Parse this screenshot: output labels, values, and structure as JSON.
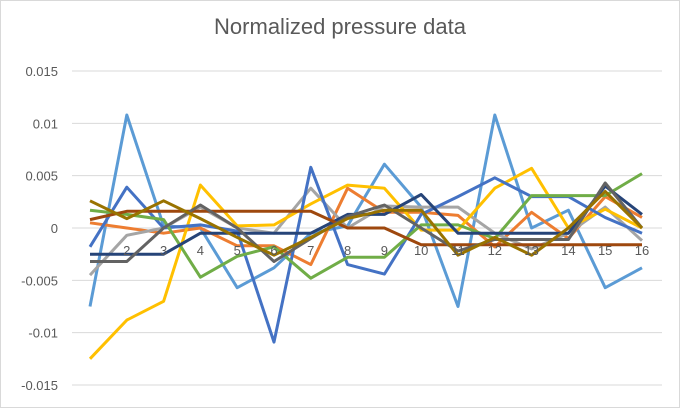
{
  "chart_data": {
    "type": "line",
    "title": "Normalized pressure data",
    "xlabel": "",
    "ylabel": "",
    "x": [
      1,
      2,
      3,
      4,
      5,
      6,
      7,
      8,
      9,
      10,
      11,
      12,
      13,
      14,
      15,
      16
    ],
    "x_tick_labels": [
      "2",
      "3",
      "4",
      "5",
      "6",
      "7",
      "8",
      "9",
      "10",
      "11",
      "12",
      "13",
      "14",
      "15",
      "16"
    ],
    "y_tick_labels": [
      "0.015",
      "0.01",
      "0.005",
      "0",
      "-0.005",
      "-0.01",
      "-0.015"
    ],
    "ylim": [
      -0.015,
      0.015
    ],
    "grid": true,
    "legend": "none",
    "series": [
      {
        "color": "#5b9bd5",
        "values": [
          -0.0075,
          0.0108,
          0.0002,
          0.0,
          -0.0057,
          -0.0038,
          -0.0005,
          0.0002,
          0.0061,
          0.002,
          -0.0075,
          0.0108,
          0.0,
          0.0017,
          -0.0057,
          -0.0038
        ]
      },
      {
        "color": "#ed7d31",
        "values": [
          0.0005,
          0.0,
          -0.0005,
          0.0,
          -0.0017,
          -0.0017,
          -0.0035,
          0.0038,
          0.0015,
          0.0015,
          0.0012,
          -0.0018,
          0.0015,
          -0.001,
          0.003,
          0.001
        ]
      },
      {
        "color": "#a5a5a5",
        "values": [
          -0.0045,
          -0.0007,
          0.0,
          0.002,
          0.0,
          -0.0005,
          0.0038,
          0.0,
          0.0021,
          0.002,
          0.002,
          -0.0005,
          -0.002,
          -0.0005,
          0.002,
          -0.0012
        ]
      },
      {
        "color": "#ffc000",
        "values": [
          -0.0125,
          -0.0088,
          -0.007,
          0.0041,
          0.0002,
          0.0003,
          0.0023,
          0.0041,
          0.0038,
          -0.0002,
          -0.0002,
          0.0038,
          0.0057,
          0.0,
          0.0018,
          0.0
        ]
      },
      {
        "color": "#4472c4",
        "values": [
          -0.0018,
          0.0039,
          0.0,
          0.0003,
          -0.0003,
          -0.0109,
          0.0058,
          -0.0035,
          -0.0044,
          0.0013,
          0.003,
          0.0048,
          0.003,
          0.003,
          0.001,
          -0.0005
        ]
      },
      {
        "color": "#70ad47",
        "values": [
          0.0017,
          0.0013,
          0.0008,
          -0.0047,
          -0.0027,
          -0.0018,
          -0.0048,
          -0.0028,
          -0.0028,
          0.0003,
          0.0003,
          -0.001,
          0.0031,
          0.0031,
          0.0031,
          0.0052
        ]
      },
      {
        "color": "#264478",
        "values": [
          -0.0025,
          -0.0025,
          -0.0025,
          -0.0005,
          -0.0005,
          -0.0005,
          -0.0005,
          0.0013,
          0.0013,
          0.0032,
          -0.0005,
          -0.0005,
          -0.0005,
          -0.0005,
          0.004,
          0.0013
        ]
      },
      {
        "color": "#9e480e",
        "values": [
          0.0008,
          0.0016,
          0.0016,
          0.0016,
          0.0016,
          0.0016,
          0.0016,
          0.0,
          0.0,
          -0.0016,
          -0.0016,
          -0.0016,
          -0.0016,
          -0.0016,
          -0.0016,
          -0.0016
        ]
      },
      {
        "color": "#636363",
        "values": [
          -0.0032,
          -0.0032,
          0.0,
          0.0022,
          0.0,
          -0.0032,
          -0.001,
          0.0011,
          0.0022,
          0.0,
          -0.0022,
          -0.0011,
          -0.0011,
          -0.0011,
          0.0043,
          0.0
        ]
      },
      {
        "color": "#997300",
        "values": [
          0.0026,
          0.0009,
          0.0026,
          0.0009,
          -0.0009,
          -0.0026,
          -0.0009,
          0.0009,
          0.0017,
          0.0017,
          -0.0026,
          -0.0009,
          -0.0026,
          0.0,
          0.0035,
          0.0
        ]
      }
    ]
  }
}
